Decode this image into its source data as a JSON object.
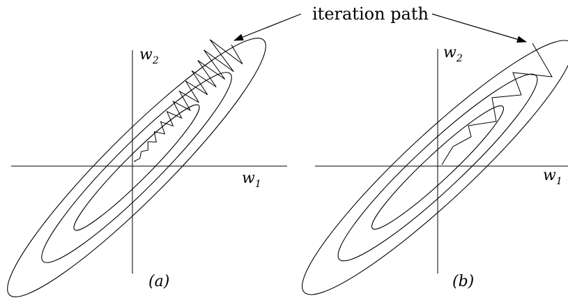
{
  "annotation": {
    "text": "iteration path"
  },
  "panels": [
    {
      "id": "a",
      "label": "(a)",
      "x_axis": {
        "symbol": "w",
        "subscript": "1"
      },
      "y_axis": {
        "symbol": "w",
        "subscript": "2"
      },
      "path_style": "zigzag"
    },
    {
      "id": "b",
      "label": "(b)",
      "x_axis": {
        "symbol": "w",
        "subscript": "1"
      },
      "y_axis": {
        "symbol": "w",
        "subscript": "2"
      },
      "path_style": "direct"
    }
  ]
}
